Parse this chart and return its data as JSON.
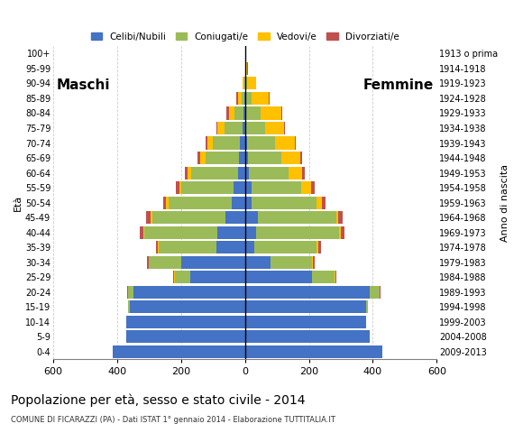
{
  "age_groups": [
    "100+",
    "95-99",
    "90-94",
    "85-89",
    "80-84",
    "75-79",
    "70-74",
    "65-69",
    "60-64",
    "55-59",
    "50-54",
    "45-49",
    "40-44",
    "35-39",
    "30-34",
    "25-29",
    "20-24",
    "15-19",
    "10-14",
    "5-9",
    "0-4"
  ],
  "birth_years": [
    "1913 o prima",
    "1914-1918",
    "1919-1923",
    "1924-1928",
    "1929-1933",
    "1934-1938",
    "1939-1943",
    "1944-1948",
    "1949-1953",
    "1954-1958",
    "1959-1963",
    "1964-1968",
    "1969-1973",
    "1974-1978",
    "1979-1983",
    "1984-1988",
    "1989-1993",
    "1994-1998",
    "1999-2003",
    "2004-2008",
    "2009-2013"
  ],
  "colors": {
    "celibe": "#4472C4",
    "coniugato": "#9BBB59",
    "vedovo": "#FFC000",
    "divorziato": "#C0504D"
  },
  "male_celibe": [
    0,
    0,
    0,
    2,
    5,
    8,
    15,
    18,
    22,
    35,
    40,
    60,
    85,
    90,
    200,
    170,
    350,
    360,
    370,
    370,
    415
  ],
  "male_coniugato": [
    0,
    0,
    3,
    8,
    28,
    55,
    85,
    105,
    145,
    165,
    200,
    230,
    230,
    180,
    100,
    50,
    15,
    5,
    0,
    0,
    0
  ],
  "male_vedovo": [
    0,
    0,
    5,
    12,
    18,
    22,
    18,
    18,
    12,
    6,
    6,
    4,
    3,
    2,
    2,
    2,
    2,
    0,
    0,
    0,
    0
  ],
  "male_divorziato": [
    0,
    0,
    0,
    5,
    8,
    5,
    5,
    8,
    10,
    10,
    10,
    15,
    12,
    5,
    5,
    2,
    2,
    0,
    0,
    0,
    0
  ],
  "female_celibe": [
    0,
    0,
    0,
    2,
    3,
    5,
    8,
    10,
    12,
    20,
    20,
    40,
    35,
    30,
    80,
    210,
    390,
    380,
    380,
    390,
    430
  ],
  "female_coniugato": [
    0,
    2,
    8,
    18,
    45,
    58,
    85,
    105,
    125,
    155,
    205,
    245,
    260,
    195,
    130,
    70,
    30,
    5,
    0,
    0,
    0
  ],
  "female_vedovo": [
    0,
    5,
    28,
    55,
    65,
    58,
    62,
    58,
    42,
    32,
    16,
    6,
    4,
    5,
    3,
    3,
    2,
    0,
    0,
    0,
    0
  ],
  "female_divorziato": [
    0,
    3,
    0,
    2,
    5,
    3,
    5,
    5,
    8,
    10,
    10,
    15,
    12,
    8,
    5,
    2,
    2,
    0,
    0,
    0,
    0
  ],
  "title": "Popolazione per età, sesso e stato civile - 2014",
  "subtitle": "COMUNE DI FICARAZZI (PA) - Dati ISTAT 1° gennaio 2014 - Elaborazione TUTTITALIA.IT",
  "label_maschi": "Maschi",
  "label_femmine": "Femmine",
  "ylabel_left": "Età",
  "ylabel_right": "Anno di nascita",
  "legend_labels": [
    "Celibi/Nubili",
    "Coniugati/e",
    "Vedovi/e",
    "Divorziati/e"
  ],
  "xlim": 600,
  "background_color": "#FFFFFF",
  "bar_height": 0.85
}
